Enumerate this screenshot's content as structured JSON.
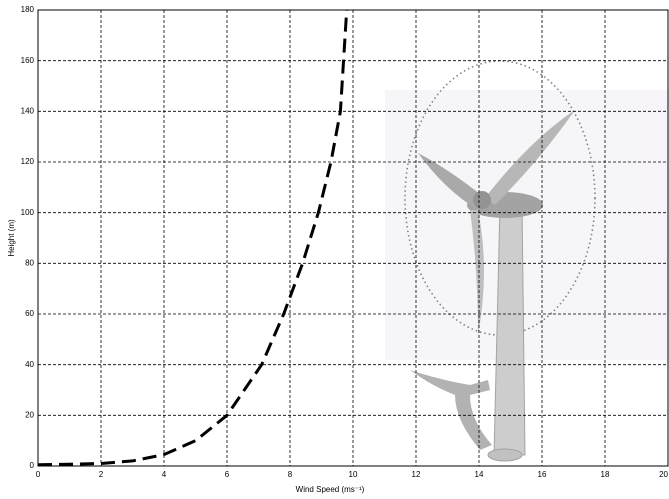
{
  "chart_data": {
    "type": "line",
    "xlabel": "Wind Speed (ms⁻¹)",
    "ylabel": "Height (m)",
    "x": [
      0,
      1,
      2,
      3,
      4,
      5,
      6,
      7.1,
      7.8,
      8.4,
      8.9,
      9.3,
      9.6,
      9.7,
      9.8
    ],
    "values": [
      0.5,
      0.7,
      1,
      2,
      4.5,
      10,
      20,
      40,
      60,
      80,
      100,
      120,
      140,
      160,
      180
    ],
    "color": "#000000",
    "xlim": [
      0,
      20
    ],
    "ylim": [
      0,
      180
    ],
    "xticks": [
      0,
      2,
      4,
      6,
      8,
      10,
      12,
      14,
      16,
      18,
      20
    ],
    "yticks": [
      0,
      20,
      40,
      60,
      80,
      100,
      120,
      140,
      160,
      180
    ],
    "grid": true
  }
}
